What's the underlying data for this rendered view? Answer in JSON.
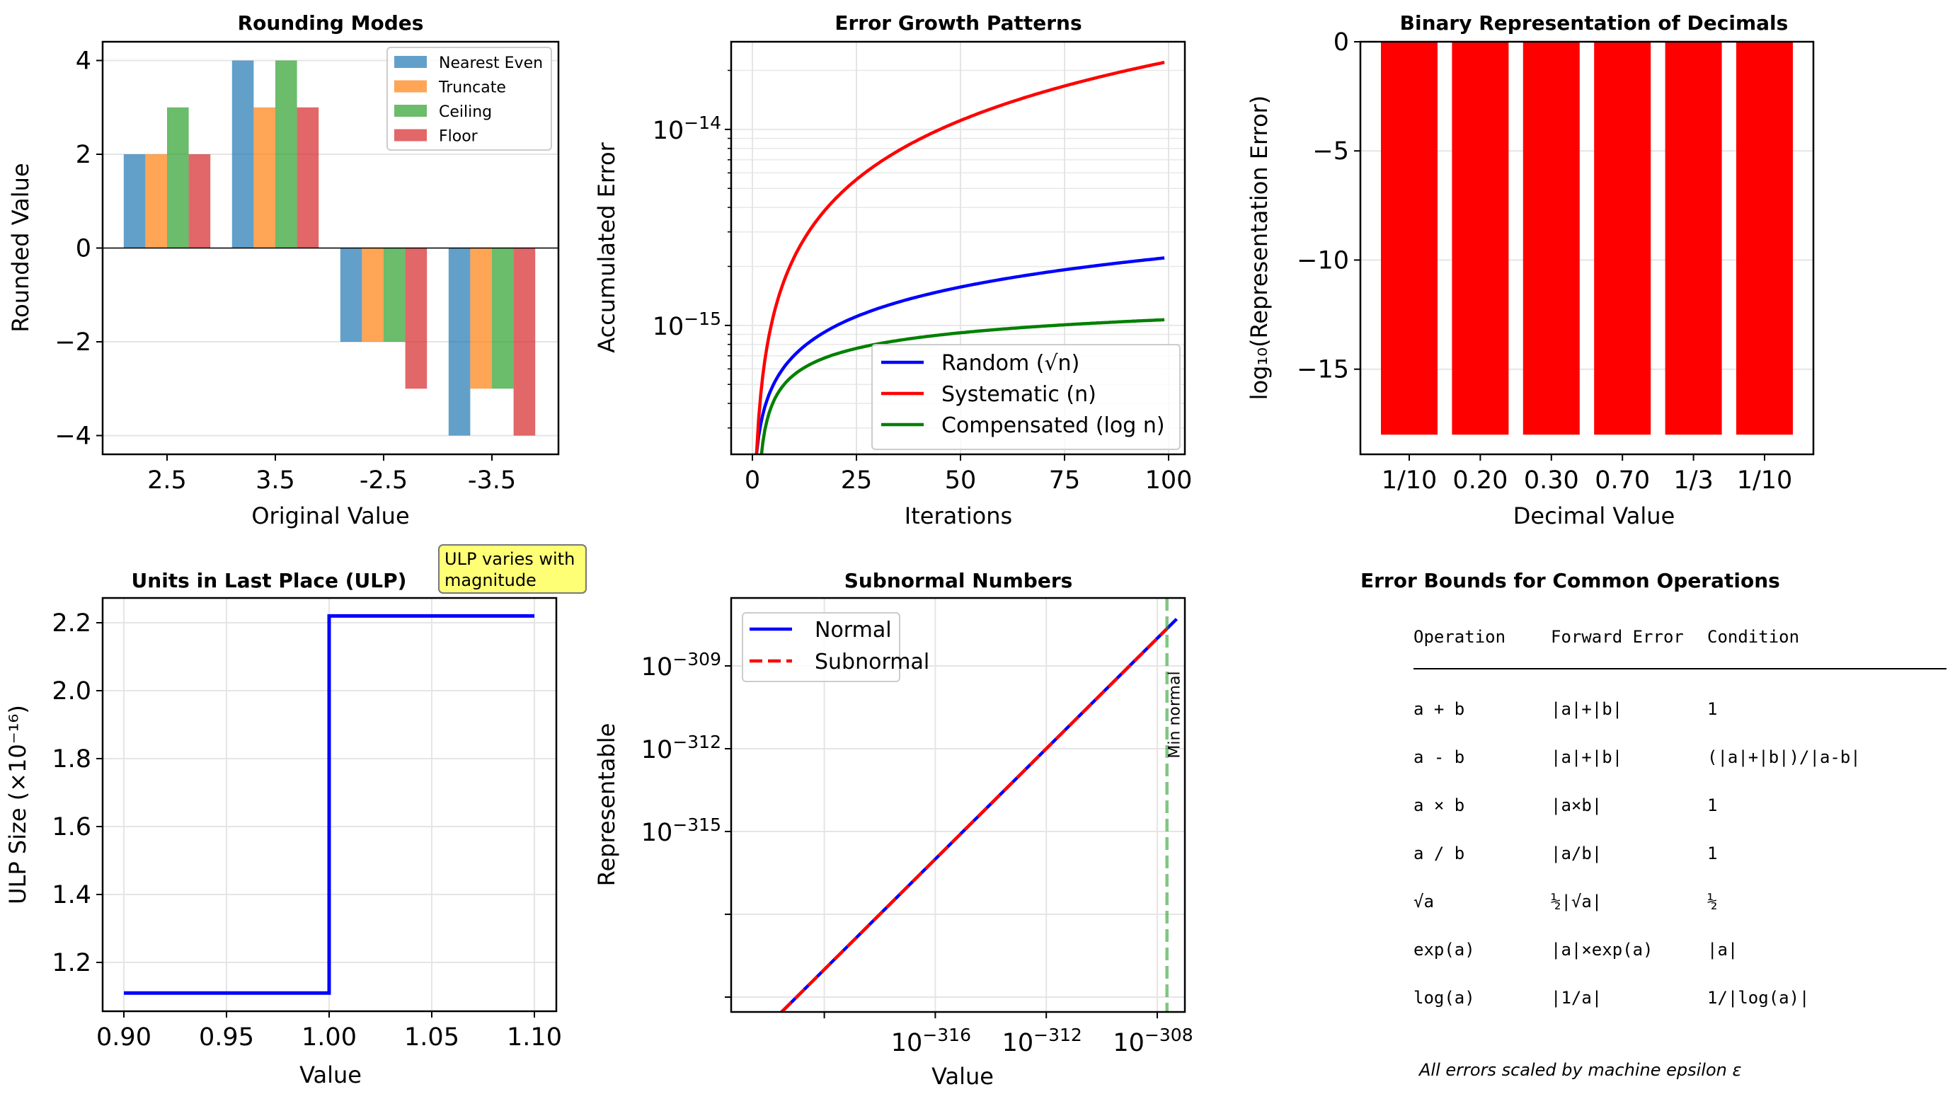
{
  "chart_data": [
    {
      "type": "bar",
      "title": "Rounding Modes",
      "xlabel": "Original Value",
      "ylabel": "Rounded Value",
      "categories": [
        "2.5",
        "3.5",
        "-2.5",
        "-3.5"
      ],
      "series": [
        {
          "name": "Nearest Even",
          "color": "#1f77b4",
          "values": [
            2,
            4,
            -2,
            -4
          ]
        },
        {
          "name": "Truncate",
          "color": "#ff7f0e",
          "values": [
            2,
            3,
            -2,
            -3
          ]
        },
        {
          "name": "Ceiling",
          "color": "#2ca02c",
          "values": [
            3,
            4,
            -2,
            -3
          ]
        },
        {
          "name": "Floor",
          "color": "#d62728",
          "values": [
            2,
            3,
            -3,
            -4
          ]
        }
      ],
      "ylim": [
        -4.4,
        4.4
      ],
      "yticks": [
        -4,
        -2,
        0,
        2,
        4
      ],
      "ytick_labels": [
        "−4",
        "−2",
        "0",
        "2",
        "4"
      ],
      "legend": "top-right",
      "grid": "y"
    },
    {
      "type": "line",
      "title": "Error Growth Patterns",
      "xlabel": "Iterations",
      "ylabel": "Accumulated Error",
      "yscale": "log",
      "x": [
        1,
        2,
        3,
        5,
        7,
        10,
        15,
        20,
        25,
        30,
        40,
        50,
        60,
        70,
        80,
        90,
        99
      ],
      "series": [
        {
          "name": "Random (√n)",
          "color": "#0000ff",
          "values": [
            2.22e-16,
            3.14e-16,
            3.85e-16,
            4.96e-16,
            5.87e-16,
            7.02e-16,
            8.6e-16,
            9.93e-16,
            1.11e-15,
            1.216e-15,
            1.404e-15,
            1.57e-15,
            1.72e-15,
            1.857e-15,
            1.986e-15,
            2.106e-15,
            2.209e-15
          ]
        },
        {
          "name": "Systematic (n)",
          "color": "#ff0000",
          "values": [
            2.22e-16,
            4.44e-16,
            6.66e-16,
            1.11e-15,
            1.554e-15,
            2.22e-15,
            3.33e-15,
            4.44e-15,
            5.55e-15,
            6.66e-15,
            8.88e-15,
            1.11e-14,
            1.332e-14,
            1.554e-14,
            1.776e-14,
            1.998e-14,
            2.198e-14
          ]
        },
        {
          "name": "Compensated (log n)",
          "color": "#008000",
          "values": [
            2.22e-16,
            3.76e-16,
            4.66e-16,
            5.79e-16,
            6.53e-16,
            7.33e-16,
            8.23e-16,
            8.87e-16,
            9.37e-16,
            9.77e-16,
            1.041e-15,
            1.09e-15,
            1.131e-15,
            1.165e-15,
            1.195e-15,
            1.221e-15,
            1.242e-15
          ]
        }
      ],
      "xlim": [
        -5,
        105
      ],
      "ylim": [
        2.2e-16,
        2.8e-14
      ],
      "xticks": [
        0,
        25,
        50,
        75,
        100
      ],
      "yticks": [
        "10⁻¹⁵",
        "10⁻¹⁴"
      ],
      "legend": "lower-right",
      "grid": "both"
    },
    {
      "type": "bar",
      "title": "Binary Representation of Decimals",
      "xlabel": "Decimal Value",
      "ylabel": "log₁₀(Representation Error)",
      "categories": [
        "1/10",
        "0.20",
        "0.30",
        "0.70",
        "1/3",
        "1/10"
      ],
      "values": [
        -18,
        -18,
        -18,
        -18,
        -18,
        -18
      ],
      "color": "#ff0000",
      "ylim": [
        -18.9,
        0
      ],
      "yticks": [
        0,
        -5,
        -10,
        -15
      ],
      "ytick_labels": [
        "0",
        "−5",
        "−10",
        "−15"
      ],
      "grid": "y"
    },
    {
      "type": "line",
      "title": "Units in Last Place (ULP)",
      "xlabel": "Value",
      "ylabel": "ULP Size (×10⁻¹⁶)",
      "x": [
        0.9,
        1.0,
        1.0,
        1.1
      ],
      "values": [
        1.11,
        1.11,
        2.22,
        2.22
      ],
      "color": "#0000ff",
      "xlim": [
        0.89,
        1.11
      ],
      "ylim": [
        1.056,
        2.273
      ],
      "xticks": [
        "0.90",
        "0.95",
        "1.00",
        "1.05",
        "1.10"
      ],
      "yticks": [
        "1.2",
        "1.4",
        "1.6",
        "1.8",
        "2.0",
        "2.2"
      ],
      "annotation": "ULP varies with\nmagnitude",
      "annotation_lines": [
        "ULP varies with",
        "magnitude"
      ],
      "grid": "both"
    },
    {
      "type": "line",
      "title": "Subnormal Numbers",
      "xlabel": "Value",
      "ylabel": "Representable",
      "xscale": "log",
      "yscale": "log",
      "x_log10": [
        -323.4,
        -307.3
      ],
      "series": [
        {
          "name": "Normal",
          "color": "#0000ff",
          "style": "solid",
          "log10_x": [
            -323.4,
            -307.3
          ],
          "log10_y": [
            -323.4,
            -307.3
          ]
        },
        {
          "name": "Subnormal",
          "color": "#ff0000",
          "style": "dashed",
          "log10_x": [
            -323.4,
            -307.65
          ],
          "log10_y": [
            -323.4,
            -307.65
          ]
        }
      ],
      "vline": {
        "label": "Min normal",
        "log10_x": -307.65,
        "color": "#2ca02c"
      },
      "xlim_log10": [
        -323.4,
        -306.7
      ],
      "ylim_log10": [
        -323.6,
        -306.4
      ],
      "xticks_log10": [
        -320,
        -316,
        -312,
        -308
      ],
      "xtick_labels": [
        "",
        "10⁻³¹⁶",
        "10⁻³¹²",
        "10⁻³⁰⁸"
      ],
      "yticks_log10": [
        -321,
        -318,
        -315,
        -312,
        -309
      ],
      "ytick_labels": [
        "",
        "",
        "10⁻³¹⁵",
        "10⁻³¹²",
        "10⁻³⁰⁹"
      ],
      "legend": "top-left",
      "grid": "both"
    },
    {
      "type": "table",
      "title": "Error Bounds for Common Operations",
      "columns": [
        "Operation",
        "Forward Error",
        "Condition"
      ],
      "rows": [
        [
          "a + b",
          "|a|+|b|",
          "1"
        ],
        [
          "a - b",
          "|a|+|b|",
          "(|a|+|b|)/|a-b|"
        ],
        [
          "a × b",
          "|a×b|",
          "1"
        ],
        [
          "a / b",
          "|a/b|",
          "1"
        ],
        [
          "√a",
          "½|√a|",
          "½"
        ],
        [
          "exp(a)",
          "|a|×exp(a)",
          "|a|"
        ],
        [
          "log(a)",
          "|1/a|",
          "1/|log(a)|"
        ]
      ],
      "footnote": "All errors scaled by machine epsilon ε"
    }
  ]
}
